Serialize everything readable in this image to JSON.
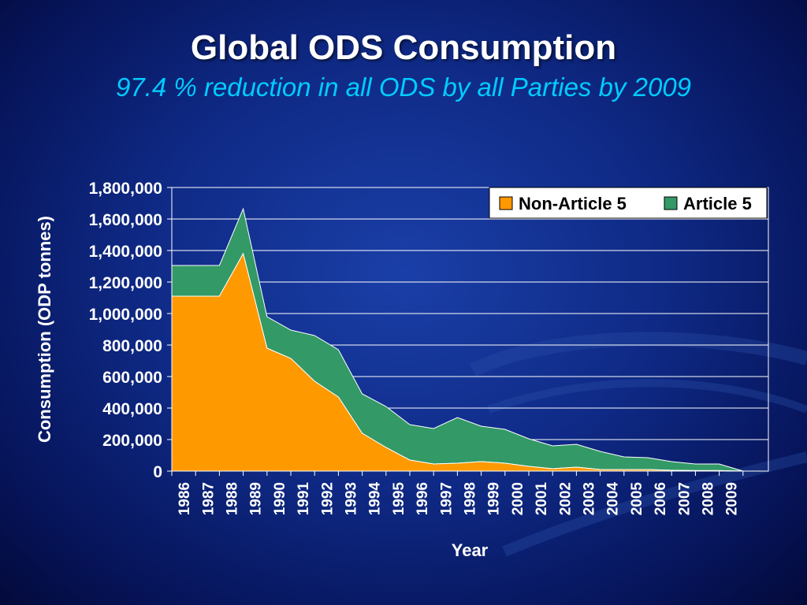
{
  "slide": {
    "title": "Global ODS Consumption",
    "subtitle": "97.4 % reduction in all ODS by all Parties by 2009"
  },
  "colors": {
    "non_article_5": "#ff9900",
    "article_5": "#339966",
    "background": "#0f2a86",
    "subtitle": "#00ccff"
  },
  "chart_data": {
    "type": "area",
    "stacked": true,
    "xlabel": "Year",
    "ylabel": "Consumption  (ODP tonnes)",
    "ylim": [
      0,
      1800000
    ],
    "yticks": [
      "0",
      "200,000",
      "400,000",
      "600,000",
      "800,000",
      "1,000,000",
      "1,200,000",
      "1,400,000",
      "1,600,000",
      "1,800,000"
    ],
    "categories": [
      "1986",
      "1987",
      "1988",
      "1989",
      "1990",
      "1991",
      "1992",
      "1993",
      "1994",
      "1995",
      "1996",
      "1997",
      "1998",
      "1999",
      "2000",
      "2001",
      "2002",
      "2003",
      "2004",
      "2005",
      "2006",
      "2007",
      "2008",
      "2009",
      ""
    ],
    "grid": "horizontal",
    "legend_position": "top-right",
    "series": [
      {
        "name": "Non-Article 5",
        "values": [
          1110000,
          1110000,
          1110000,
          1380000,
          780000,
          715000,
          570000,
          470000,
          240000,
          150000,
          70000,
          45000,
          50000,
          60000,
          50000,
          30000,
          15000,
          25000,
          10000,
          10000,
          10000,
          5000,
          3000,
          3000,
          0
        ]
      },
      {
        "name": "Article 5",
        "values": [
          195000,
          195000,
          195000,
          285000,
          200000,
          180000,
          290000,
          300000,
          250000,
          260000,
          225000,
          225000,
          290000,
          225000,
          215000,
          175000,
          145000,
          145000,
          115000,
          80000,
          75000,
          55000,
          42000,
          42000,
          0
        ]
      }
    ]
  }
}
